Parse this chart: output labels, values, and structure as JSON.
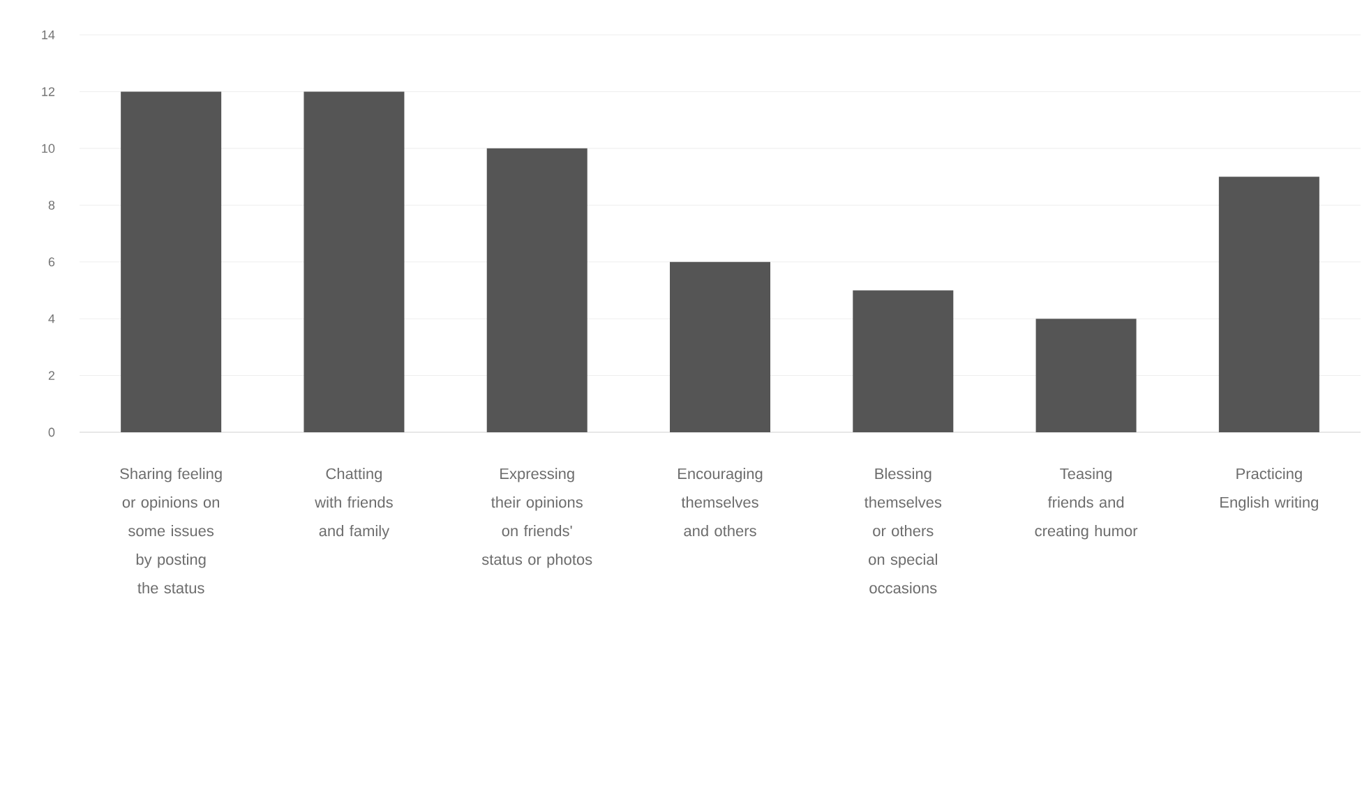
{
  "chart_data": {
    "type": "bar",
    "categories": [
      "Sharing feeling or opinions on some issues by posting the status",
      "Chatting with friends and family",
      "Expressing their opinions on friends' status or photos",
      "Encouraging themselves and others",
      "Blessing themselves or others on special occasions",
      "Teasing friends and creating humor",
      "Practicing English writing"
    ],
    "values": [
      12,
      12,
      10,
      6,
      5,
      4,
      9
    ],
    "color": "#555555",
    "ylim": [
      0,
      14
    ],
    "yticks": [
      0,
      2,
      4,
      6,
      8,
      10,
      12,
      14
    ],
    "grid": "y"
  }
}
